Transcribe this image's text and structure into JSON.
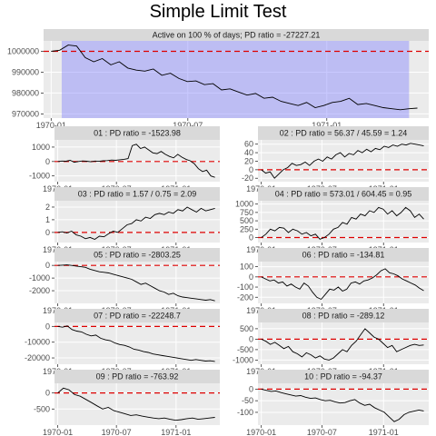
{
  "title": "Simple Limit Test",
  "colors": {
    "strip": "#d9d9d9",
    "panel": "#ebebeb",
    "grid": "#ffffff",
    "line": "#000000",
    "ref": "#dd0000",
    "shade": "#7777ff"
  },
  "chart_data": [
    {
      "type": "line",
      "panel": "main",
      "strip_label": "Active on 100 % of days; PD ratio =  -27227.21",
      "x_ticks": [
        "1970-01",
        "1970-07",
        "1971-01"
      ],
      "y_ticks": [
        "970000",
        "980000",
        "990000",
        "1000000"
      ],
      "ylim": [
        968000,
        1005000
      ],
      "ref_line": 1000000,
      "active_shading": {
        "from": "1970-01-15",
        "to": "1971-04-20"
      },
      "series": [
        {
          "x_range": [
            "1970-01-01",
            "1971-05-01"
          ],
          "values": [
            1000000,
            1000500,
            1003000,
            1002500,
            997000,
            995000,
            996500,
            993500,
            995000,
            992000,
            991000,
            990500,
            991500,
            988500,
            989500,
            987000,
            985500,
            985800,
            984000,
            984500,
            981500,
            982000,
            980500,
            979000,
            979800,
            977500,
            978000,
            976000,
            975000,
            974000,
            975500,
            973000,
            974000,
            975500,
            976000,
            977500,
            974500,
            975000,
            974000,
            973000,
            972500,
            972000,
            972500,
            972800
          ]
        }
      ]
    },
    {
      "type": "line",
      "strip_label": "01 : PD ratio =  -1523.98",
      "x_ticks": [
        "1970-01",
        "1970-07",
        "1971-01"
      ],
      "y_ticks": [
        "-1000",
        "0",
        "1000"
      ],
      "ylim": [
        -1400,
        1500
      ],
      "ref_line": 0,
      "series": [
        {
          "x_range": [
            "1970-01-01",
            "1971-05-01"
          ],
          "values": [
            0,
            30,
            20,
            80,
            -50,
            0,
            40,
            20,
            -20,
            30,
            10,
            50,
            60,
            100,
            80,
            120,
            150,
            200,
            1100,
            1200,
            900,
            1000,
            800,
            600,
            550,
            700,
            500,
            350,
            250,
            500,
            300,
            150,
            50,
            -150,
            -500,
            -700,
            -600,
            -1000,
            -1100
          ]
        }
      ]
    },
    {
      "type": "line",
      "strip_label": "02 : PD ratio =  56.37 / 45.59 = 1.24",
      "x_ticks": [
        "1970-01",
        "1970-07",
        "1971-01"
      ],
      "y_ticks": [
        "-20",
        "0",
        "20",
        "40",
        "60"
      ],
      "ylim": [
        -28,
        70
      ],
      "ref_line": 0,
      "series": [
        {
          "x_range": [
            "1970-01-01",
            "1971-05-01"
          ],
          "values": [
            0,
            -8,
            -5,
            -20,
            -10,
            0,
            5,
            15,
            10,
            12,
            18,
            10,
            20,
            25,
            20,
            30,
            25,
            35,
            40,
            30,
            38,
            35,
            45,
            40,
            48,
            42,
            50,
            47,
            55,
            52,
            58,
            55,
            60,
            58,
            62,
            60,
            58,
            56
          ]
        }
      ]
    },
    {
      "type": "line",
      "strip_label": "03 : PD ratio =  1.57 / 0.75 = 2.09",
      "x_ticks": [
        "1970-01",
        "1970-07",
        "1971-01"
      ],
      "y_ticks": [
        "0",
        "1",
        "2"
      ],
      "ylim": [
        -0.8,
        2.5
      ],
      "ref_line": 0,
      "series": [
        {
          "x_range": [
            "1970-01-01",
            "1971-05-01"
          ],
          "values": [
            0,
            0.05,
            -0.05,
            0.1,
            -0.2,
            -0.3,
            -0.5,
            -0.4,
            -0.55,
            -0.3,
            -0.35,
            -0.1,
            0.1,
            0.0,
            0.3,
            0.6,
            0.7,
            1.0,
            0.9,
            1.2,
            1.1,
            1.4,
            1.5,
            1.4,
            1.6,
            1.5,
            1.8,
            1.7,
            2.0,
            1.8,
            1.6,
            1.9,
            1.7,
            1.8,
            1.9
          ]
        }
      ]
    },
    {
      "type": "line",
      "strip_label": "04 : PD ratio =  573.01 / 604.45 = 0.95",
      "x_ticks": [
        "1970-01",
        "1970-07",
        "1971-01"
      ],
      "y_ticks": [
        "0",
        "250",
        "500",
        "750",
        "1000"
      ],
      "ylim": [
        -150,
        1100
      ],
      "ref_line": 0,
      "series": [
        {
          "x_range": [
            "1970-01-01",
            "1971-05-01"
          ],
          "values": [
            0,
            100,
            250,
            200,
            300,
            280,
            150,
            250,
            200,
            100,
            150,
            50,
            100,
            -50,
            0,
            100,
            250,
            300,
            450,
            400,
            600,
            550,
            700,
            650,
            800,
            750,
            900,
            850,
            700,
            800,
            650,
            750,
            900,
            800,
            600,
            700,
            550
          ]
        }
      ]
    },
    {
      "type": "line",
      "strip_label": "05 : PD ratio =  -2803.25",
      "x_ticks": [
        "1970-01",
        "1970-07",
        "1971-01"
      ],
      "y_ticks": [
        "-2000",
        "-1000",
        "0"
      ],
      "ylim": [
        -3000,
        300
      ],
      "ref_line": 0,
      "series": [
        {
          "x_range": [
            "1970-01-01",
            "1971-05-01"
          ],
          "values": [
            0,
            20,
            40,
            0,
            -50,
            -100,
            -150,
            -300,
            -400,
            -500,
            -550,
            -600,
            -700,
            -800,
            -900,
            -1000,
            -1100,
            -1300,
            -1500,
            -1400,
            -1600,
            -1800,
            -2000,
            -2100,
            -2300,
            -2200,
            -2400,
            -2500,
            -2550,
            -2600,
            -2650,
            -2700,
            -2750,
            -2700,
            -2800
          ]
        }
      ]
    },
    {
      "type": "line",
      "strip_label": "06 : PD ratio =  -134.81",
      "x_ticks": [
        "1970-01",
        "1970-07",
        "1971-01"
      ],
      "y_ticks": [
        "-200",
        "-100",
        "0",
        "100"
      ],
      "ylim": [
        -260,
        150
      ],
      "ref_line": 0,
      "series": [
        {
          "x_range": [
            "1970-01-01",
            "1971-05-01"
          ],
          "values": [
            0,
            -20,
            -40,
            -30,
            -60,
            -50,
            -90,
            -70,
            -100,
            -120,
            -60,
            -90,
            -150,
            -200,
            -220,
            -170,
            -120,
            -130,
            -100,
            -140,
            -120,
            -60,
            -50,
            -70,
            -40,
            -30,
            -10,
            20,
            60,
            80,
            40,
            30,
            10,
            -20,
            -40,
            -60,
            -80,
            -110,
            -135
          ]
        }
      ]
    },
    {
      "type": "line",
      "strip_label": "07 : PD ratio =  -22248.7",
      "x_ticks": [
        "1970-01",
        "1970-07",
        "1971-01"
      ],
      "y_ticks": [
        "-20000",
        "-10000",
        "0"
      ],
      "ylim": [
        -24000,
        2500
      ],
      "ref_line": 0,
      "series": [
        {
          "x_range": [
            "1970-01-01",
            "1971-05-01"
          ],
          "values": [
            0,
            -500,
            300,
            -2000,
            -3000,
            -3500,
            -5000,
            -6000,
            -5500,
            -7500,
            -8500,
            -9000,
            -10500,
            -11500,
            -12000,
            -13000,
            -14500,
            -15000,
            -16000,
            -16500,
            -17500,
            -18000,
            -18500,
            -19000,
            -19500,
            -20000,
            -20500,
            -21000,
            -21500,
            -21000,
            -21500,
            -22000,
            -21800,
            -22200
          ]
        }
      ]
    },
    {
      "type": "line",
      "strip_label": "08 : PD ratio =  -289.12",
      "x_ticks": [
        "1970-01",
        "1970-07",
        "1971-01"
      ],
      "y_ticks": [
        "-1000",
        "-500",
        "0",
        "500"
      ],
      "ylim": [
        -1200,
        800
      ],
      "ref_line": 0,
      "series": [
        {
          "x_range": [
            "1970-01-01",
            "1971-05-01"
          ],
          "values": [
            0,
            -100,
            -250,
            -150,
            -300,
            -450,
            -350,
            -600,
            -700,
            -850,
            -650,
            -750,
            -900,
            -800,
            -950,
            -1000,
            -900,
            -700,
            -500,
            -600,
            -300,
            -100,
            200,
            500,
            300,
            100,
            0,
            -200,
            -400,
            -300,
            -600,
            -500,
            -400,
            -300,
            -250,
            -300,
            -280
          ]
        }
      ]
    },
    {
      "type": "line",
      "strip_label": "09 : PD ratio =  -763.92",
      "x_ticks": [
        "1970-01",
        "1970-07",
        "1971-01"
      ],
      "y_ticks": [
        "-500",
        "0"
      ],
      "ylim": [
        -1000,
        300
      ],
      "ref_line": 0,
      "series": [
        {
          "x_range": [
            "1970-01-01",
            "1971-05-01"
          ],
          "values": [
            0,
            150,
            100,
            -50,
            -100,
            -200,
            -300,
            -400,
            -500,
            -450,
            -550,
            -600,
            -650,
            -700,
            -680,
            -720,
            -750,
            -780,
            -800,
            -780,
            -820,
            -850,
            -830,
            -800,
            -780,
            -820,
            -800,
            -780,
            -760
          ]
        }
      ]
    },
    {
      "type": "line",
      "strip_label": "10 : PD ratio =  -94.37",
      "x_ticks": [
        "1970-01",
        "1970-07",
        "1971-01"
      ],
      "y_ticks": [
        "-100",
        "-50",
        "0"
      ],
      "ylim": [
        -155,
        25
      ],
      "ref_line": 0,
      "series": [
        {
          "x_range": [
            "1970-01-01",
            "1971-05-01"
          ],
          "values": [
            0,
            -5,
            -10,
            -8,
            -15,
            -20,
            -25,
            -30,
            -28,
            -35,
            -40,
            -38,
            -45,
            -50,
            -48,
            -55,
            -60,
            -58,
            -50,
            -45,
            -60,
            -70,
            -65,
            -80,
            -90,
            -100,
            -120,
            -140,
            -130,
            -110,
            -100,
            -95,
            -90,
            -94
          ]
        }
      ]
    }
  ]
}
